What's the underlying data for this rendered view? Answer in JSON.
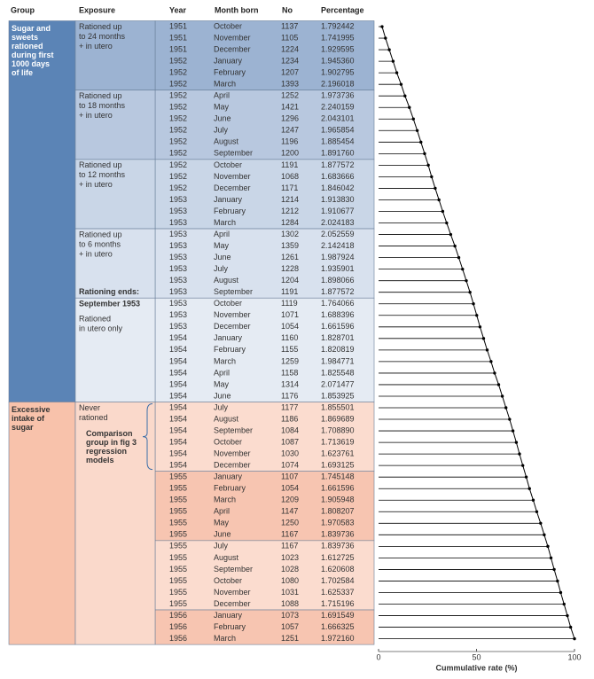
{
  "header": {
    "group": "Group",
    "exposure": "Exposure",
    "year": "Year",
    "month": "Month born",
    "no": "No",
    "percentage": "Percentage"
  },
  "groups": [
    {
      "lines": [
        "Sugar and",
        "sweets",
        "rationed",
        "during first",
        "1000 days",
        "of life"
      ],
      "first_row": 0,
      "last_row": 32,
      "color": "#5b84b6",
      "text_color": "#ffffff"
    },
    {
      "lines": [
        "Excessive",
        "intake of",
        "sugar"
      ],
      "first_row": 33,
      "last_row": 53,
      "color": "#f8c2ab",
      "text_color": "#333333"
    }
  ],
  "exposures": [
    {
      "lines": [
        "Rationed up",
        "to 24 months",
        "+ in utero"
      ],
      "first_row": 0,
      "last_row": 5,
      "color": "#9cb3d2"
    },
    {
      "lines": [
        "Rationed up",
        "to 18 months",
        "+ in utero"
      ],
      "first_row": 6,
      "last_row": 11,
      "color": "#b8c8df"
    },
    {
      "lines": [
        "Rationed up",
        "to 12 months",
        "+ in utero"
      ],
      "first_row": 12,
      "last_row": 17,
      "color": "#c9d6e7"
    },
    {
      "lines": [
        "Rationed up",
        "to 6 months",
        "+ in utero"
      ],
      "first_row": 18,
      "last_row": 23,
      "color": "#d8e1ee",
      "note": "Rationing ends:"
    },
    {
      "lines": [
        "September 1953",
        "Rationed",
        "in utero only"
      ],
      "first_row": 24,
      "last_row": 32,
      "color": "#e5ebf3"
    },
    {
      "lines": [
        "Never",
        "rationed"
      ],
      "first_row": 33,
      "last_row": 53,
      "color": "#fad9cb",
      "comparison": [
        "Comparison",
        "group in fig 3",
        "regression",
        "models"
      ]
    }
  ],
  "table": {
    "rows": [
      [
        1951,
        "October",
        1137,
        "1.792442"
      ],
      [
        1951,
        "November",
        1105,
        "1.741995"
      ],
      [
        1951,
        "December",
        1224,
        "1.929595"
      ],
      [
        1952,
        "January",
        1234,
        "1.945360"
      ],
      [
        1952,
        "February",
        1207,
        "1.902795"
      ],
      [
        1952,
        "March",
        1393,
        "2.196018"
      ],
      [
        1952,
        "April",
        1252,
        "1.973736"
      ],
      [
        1952,
        "May",
        1421,
        "2.240159"
      ],
      [
        1952,
        "June",
        1296,
        "2.043101"
      ],
      [
        1952,
        "July",
        1247,
        "1.965854"
      ],
      [
        1952,
        "August",
        1196,
        "1.885454"
      ],
      [
        1952,
        "September",
        1200,
        "1.891760"
      ],
      [
        1952,
        "October",
        1191,
        "1.877572"
      ],
      [
        1952,
        "November",
        1068,
        "1.683666"
      ],
      [
        1952,
        "December",
        1171,
        "1.846042"
      ],
      [
        1953,
        "January",
        1214,
        "1.913830"
      ],
      [
        1953,
        "February",
        1212,
        "1.910677"
      ],
      [
        1953,
        "March",
        1284,
        "2.024183"
      ],
      [
        1953,
        "April",
        1302,
        "2.052559"
      ],
      [
        1953,
        "May",
        1359,
        "2.142418"
      ],
      [
        1953,
        "June",
        1261,
        "1.987924"
      ],
      [
        1953,
        "July",
        1228,
        "1.935901"
      ],
      [
        1953,
        "August",
        1204,
        "1.898066"
      ],
      [
        1953,
        "September",
        1191,
        "1.877572"
      ],
      [
        1953,
        "October",
        1119,
        "1.764066"
      ],
      [
        1953,
        "November",
        1071,
        "1.688396"
      ],
      [
        1953,
        "December",
        1054,
        "1.661596"
      ],
      [
        1954,
        "January",
        1160,
        "1.828701"
      ],
      [
        1954,
        "February",
        1155,
        "1.820819"
      ],
      [
        1954,
        "March",
        1259,
        "1.984771"
      ],
      [
        1954,
        "April",
        1158,
        "1.825548"
      ],
      [
        1954,
        "May",
        1314,
        "2.071477"
      ],
      [
        1954,
        "June",
        1176,
        "1.853925"
      ],
      [
        1954,
        "July",
        1177,
        "1.855501"
      ],
      [
        1954,
        "August",
        1186,
        "1.869689"
      ],
      [
        1954,
        "September",
        1084,
        "1.708890"
      ],
      [
        1954,
        "October",
        1087,
        "1.713619"
      ],
      [
        1954,
        "November",
        1030,
        "1.623761"
      ],
      [
        1954,
        "December",
        1074,
        "1.693125"
      ],
      [
        1955,
        "January",
        1107,
        "1.745148"
      ],
      [
        1955,
        "February",
        1054,
        "1.661596"
      ],
      [
        1955,
        "March",
        1209,
        "1.905948"
      ],
      [
        1955,
        "April",
        1147,
        "1.808207"
      ],
      [
        1955,
        "May",
        1250,
        "1.970583"
      ],
      [
        1955,
        "June",
        1167,
        "1.839736"
      ],
      [
        1955,
        "July",
        1167,
        "1.839736"
      ],
      [
        1955,
        "August",
        1023,
        "1.612725"
      ],
      [
        1955,
        "September",
        1028,
        "1.620608"
      ],
      [
        1955,
        "October",
        1080,
        "1.702584"
      ],
      [
        1955,
        "November",
        1031,
        "1.625337"
      ],
      [
        1955,
        "December",
        1088,
        "1.715196"
      ],
      [
        1956,
        "January",
        1073,
        "1.691549"
      ],
      [
        1956,
        "February",
        1057,
        "1.666325"
      ],
      [
        1956,
        "March",
        1251,
        "1.972160"
      ]
    ],
    "block_colors": [
      "#9cb3d2",
      "#b8c8df",
      "#c9d6e7",
      "#d8e1ee",
      "#e5ebf3",
      "#e5ebf3",
      "#fbdccf",
      "#f7c5b1",
      "#fbdccf",
      "#f7c5b1"
    ]
  },
  "chart": {
    "xlabel": "Cummulative rate (%)",
    "xlim": [
      0,
      100
    ],
    "xticks": [
      0,
      50,
      100
    ],
    "color": "#000000"
  }
}
